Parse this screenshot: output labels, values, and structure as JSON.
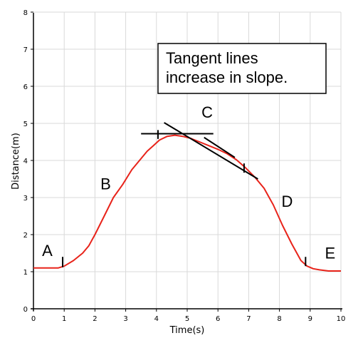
{
  "chart_data": {
    "type": "line",
    "xlabel": "Time(s)",
    "ylabel": "Distance(m)",
    "xlim": [
      0,
      10
    ],
    "ylim": [
      0,
      8
    ],
    "xticks": [
      "0",
      "1",
      "2",
      "3",
      "4",
      "5",
      "6",
      "7",
      "8",
      "9",
      "10"
    ],
    "yticks": [
      "0",
      "1",
      "2",
      "3",
      "4",
      "5",
      "6",
      "7",
      "8"
    ],
    "grid": true,
    "series": [
      {
        "color": "#e8231a",
        "x": [
          0,
          0.5,
          0.8,
          1.0,
          1.3,
          1.6,
          1.8,
          2.0,
          2.3,
          2.6,
          2.9,
          3.2,
          3.45,
          3.7,
          3.9,
          4.1,
          4.35,
          4.6,
          4.85,
          5.1,
          5.4,
          5.7,
          6.0,
          6.3,
          6.6,
          6.9,
          7.2,
          7.5,
          7.8,
          8.1,
          8.4,
          8.7,
          8.9,
          9.1,
          9.3,
          9.6,
          10.0
        ],
        "y": [
          1.1,
          1.1,
          1.1,
          1.15,
          1.3,
          1.5,
          1.7,
          2.0,
          2.5,
          3.0,
          3.35,
          3.75,
          4.0,
          4.25,
          4.4,
          4.55,
          4.65,
          4.68,
          4.65,
          4.6,
          4.5,
          4.4,
          4.3,
          4.18,
          4.02,
          3.8,
          3.55,
          3.25,
          2.8,
          2.25,
          1.75,
          1.3,
          1.15,
          1.08,
          1.05,
          1.02,
          1.02
        ]
      }
    ],
    "tangent_lines": [
      {
        "x": [
          3.5,
          5.85
        ],
        "y": [
          4.72,
          4.72
        ]
      },
      {
        "x": [
          4.25,
          7.3
        ],
        "y": [
          5.02,
          3.5
        ]
      },
      {
        "x": [
          5.55,
          6.55
        ],
        "y": [
          4.62,
          4.08
        ]
      }
    ],
    "segment_markers": [
      {
        "x": 0.95,
        "y": [
          1.12,
          1.4
        ]
      },
      {
        "x": 4.05,
        "y": [
          4.58,
          4.82
        ]
      },
      {
        "x": 6.85,
        "y": [
          3.67,
          3.92
        ]
      },
      {
        "x": 8.85,
        "y": [
          1.15,
          1.4
        ]
      }
    ],
    "point_labels": [
      {
        "text": "A",
        "x": 0.45,
        "y": 1.42
      },
      {
        "text": "B",
        "x": 2.35,
        "y": 3.22
      },
      {
        "text": "C",
        "x": 5.65,
        "y": 5.15
      },
      {
        "text": "D",
        "x": 8.25,
        "y": 2.75
      },
      {
        "text": "E",
        "x": 9.65,
        "y": 1.36
      }
    ],
    "annotation": {
      "lines": [
        "Tangent lines",
        "increase in slope."
      ]
    }
  }
}
